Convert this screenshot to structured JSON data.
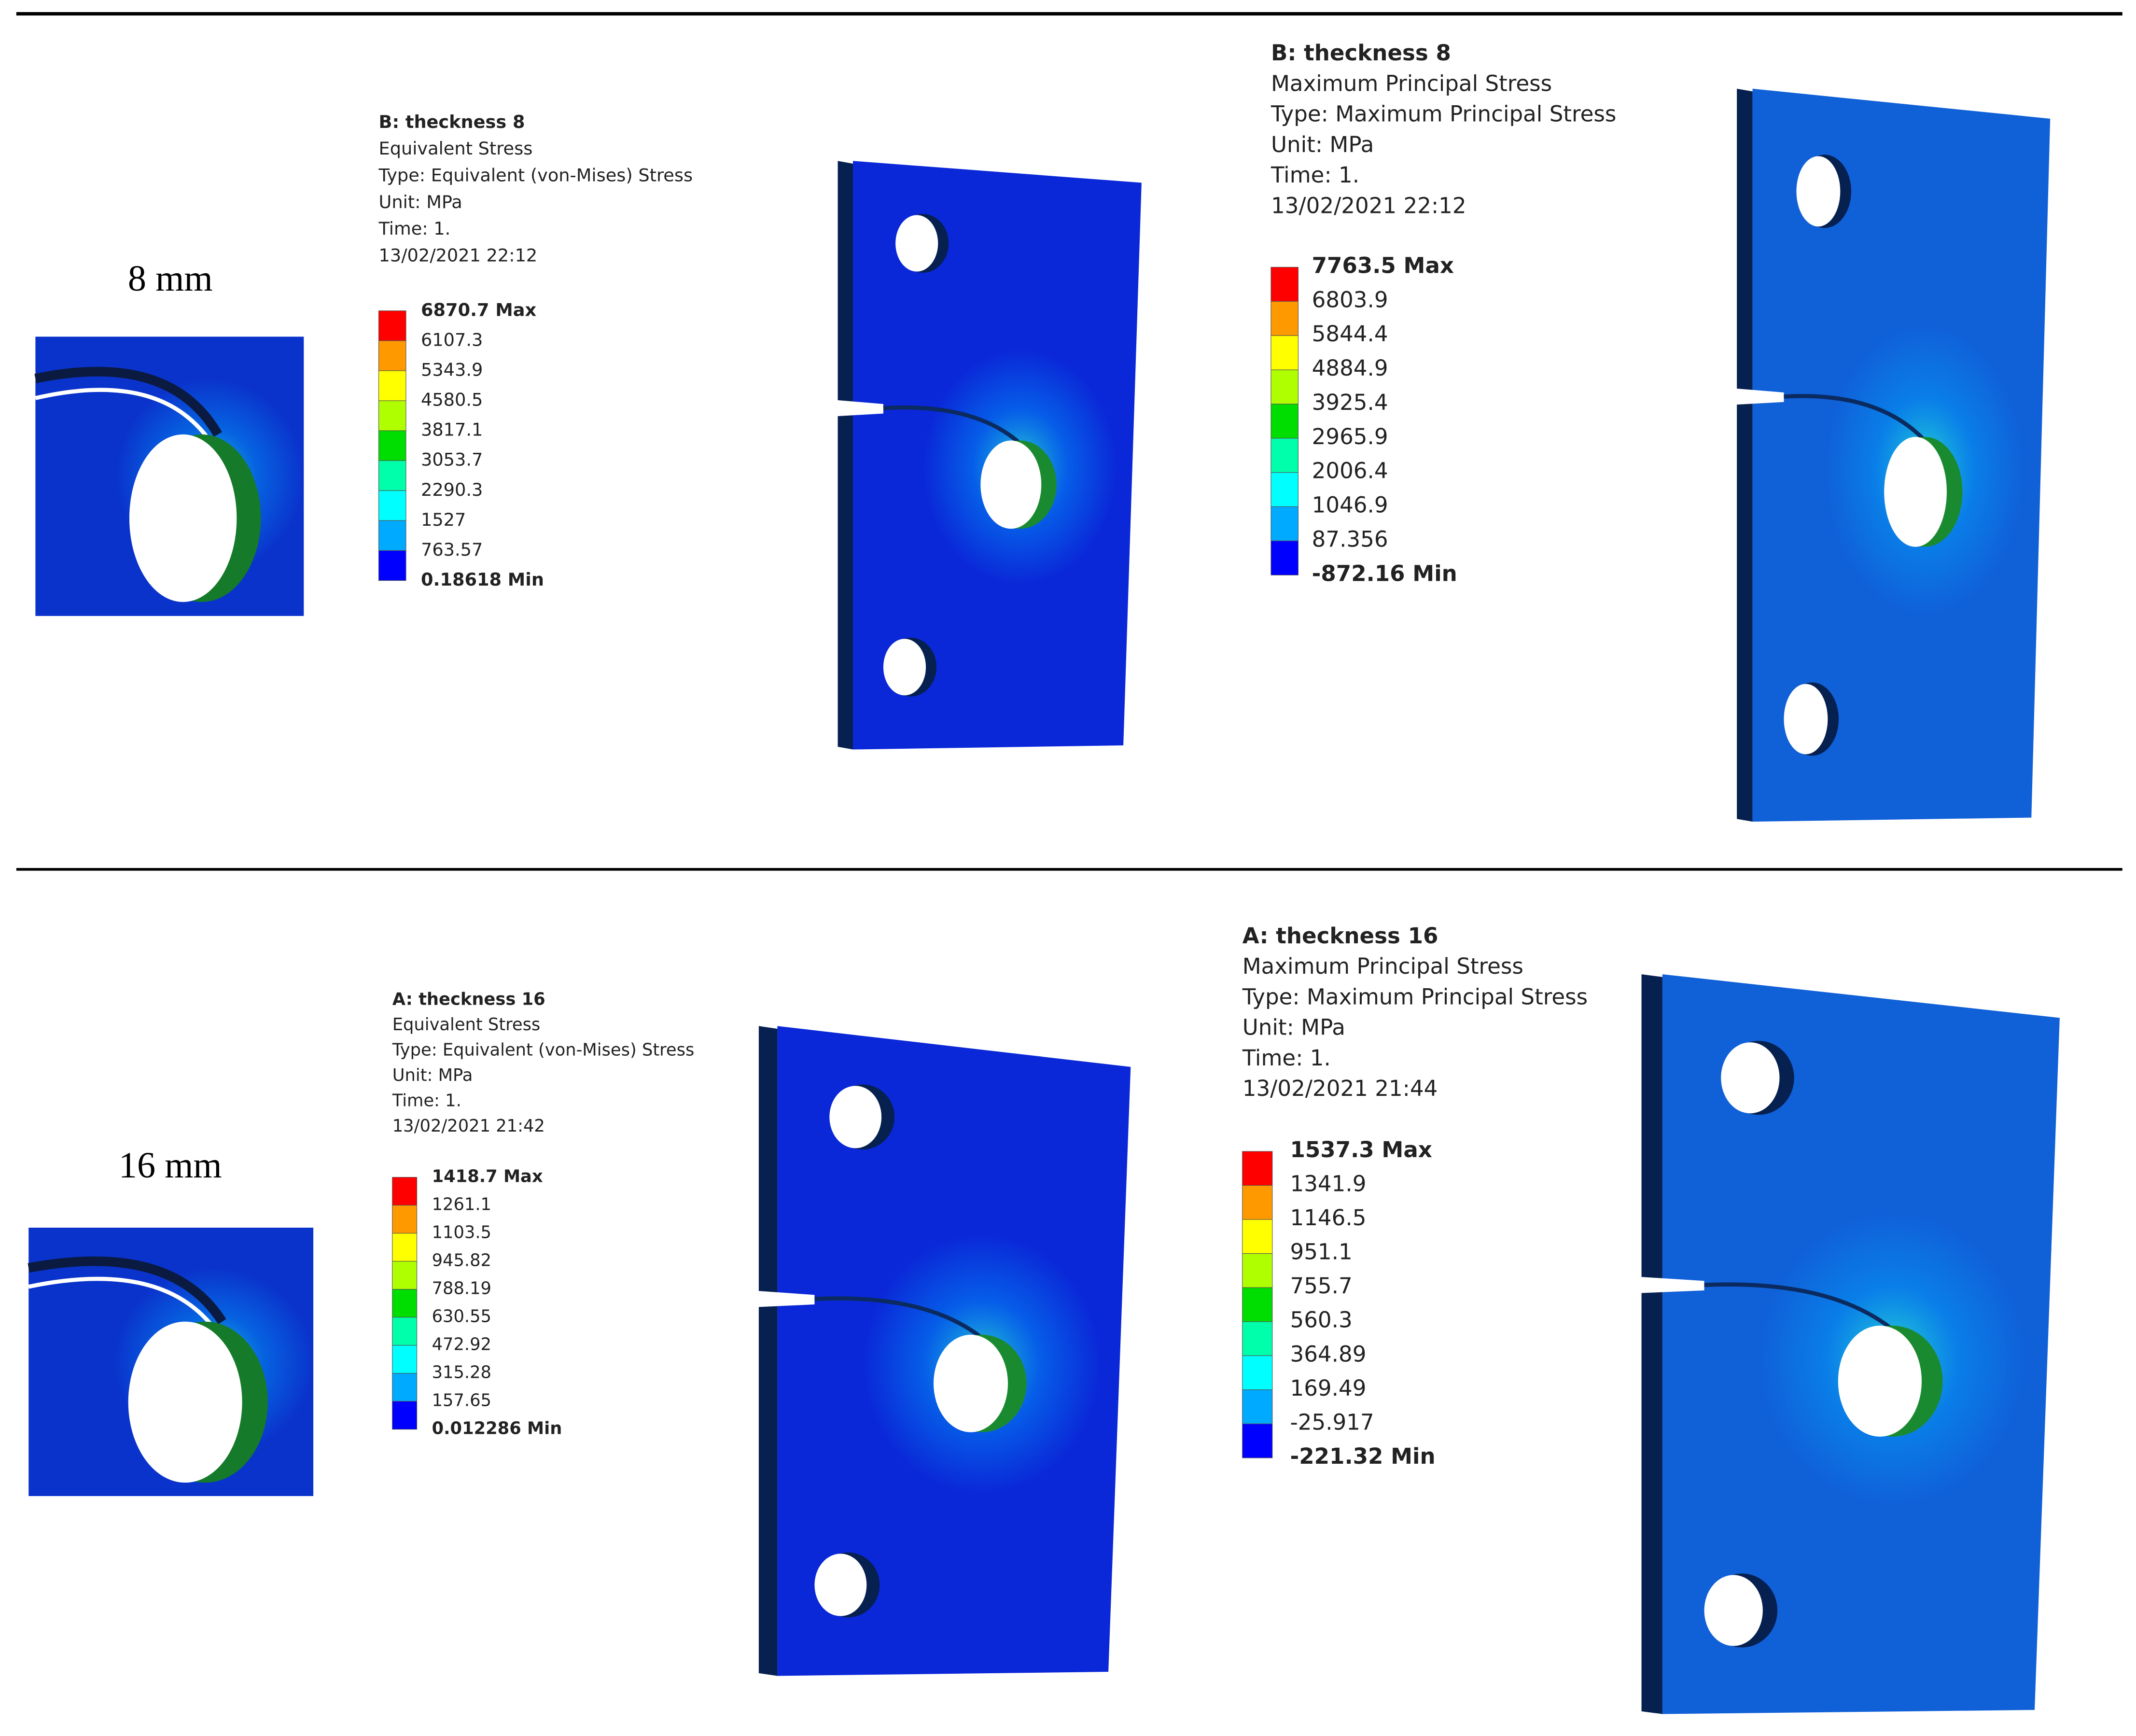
{
  "rows": [
    {
      "label": "8 mm",
      "equivalent": {
        "lines": [
          "B: theckness 8",
          "Equivalent Stress",
          "Type: Equivalent (von-Mises) Stress",
          "Unit: MPa",
          "Time: 1.",
          "13/02/2021 22:12"
        ],
        "scale": [
          "6870.7 Max",
          "6107.3",
          "5343.9",
          "4580.5",
          "3817.1",
          "3053.7",
          "2290.3",
          "1527",
          "763.57",
          "0.18618 Min"
        ]
      },
      "principal": {
        "lines": [
          "B: theckness 8",
          "Maximum Principal Stress",
          "Type: Maximum Principal Stress",
          "Unit: MPa",
          "Time: 1.",
          "13/02/2021 22:12"
        ],
        "scale": [
          "7763.5 Max",
          "6803.9",
          "5844.4",
          "4884.9",
          "3925.4",
          "2965.9",
          "2006.4",
          "1046.9",
          "87.356",
          "-872.16 Min"
        ]
      }
    },
    {
      "label": "16 mm",
      "equivalent": {
        "lines": [
          "A: theckness 16",
          "Equivalent Stress",
          "Type: Equivalent (von-Mises) Stress",
          "Unit: MPa",
          "Time: 1.",
          "13/02/2021 21:42"
        ],
        "scale": [
          "1418.7 Max",
          "1261.1",
          "1103.5",
          "945.82",
          "788.19",
          "630.55",
          "472.92",
          "315.28",
          "157.65",
          "0.012286 Min"
        ]
      },
      "principal": {
        "lines": [
          "A: theckness 16",
          "Maximum Principal Stress",
          "Type: Maximum Principal Stress",
          "Unit: MPa",
          "Time: 1.",
          "13/02/2021 21:44"
        ],
        "scale": [
          "1537.3 Max",
          "1341.9",
          "1146.5",
          "951.1",
          "755.7",
          "560.3",
          "364.89",
          "169.49",
          "-25.917",
          "-221.32 Min"
        ]
      }
    }
  ]
}
